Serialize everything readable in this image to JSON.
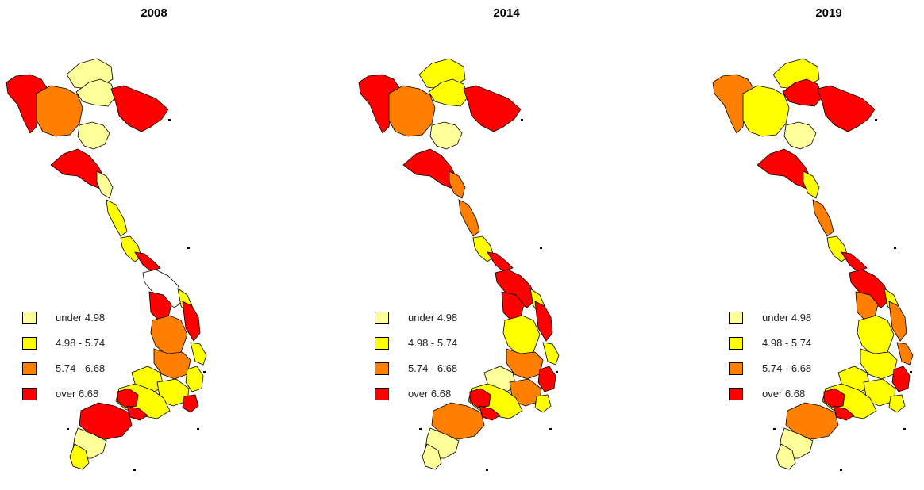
{
  "legend": {
    "classes": [
      {
        "label": "under 4.98",
        "color": "#ffff99"
      },
      {
        "label": "4.98 - 5.74",
        "color": "#ffff00"
      },
      {
        "label": "5.74 - 6.68",
        "color": "#ff8000"
      },
      {
        "label": "over 6.68",
        "color": "#ff0000"
      }
    ],
    "no_data_color": "#ffffff"
  },
  "panels": [
    {
      "year": "2008",
      "regions": {
        "northwest": 3,
        "north_center": 2,
        "north_east": 0,
        "red_delta": 3,
        "north_north": 0,
        "thanh_hoa": 0,
        "nghe_an": 3,
        "ha_tinh": 0,
        "quang_binh": 1,
        "quang_tri": 1,
        "hue": 3,
        "quang_nam": -1,
        "kon_tum": 3,
        "quang_ngai": 1,
        "gia_lai": 2,
        "binh_dinh": 3,
        "dak_lak": 2,
        "phu_yen": 1,
        "dak_nong": 1,
        "khanh_hoa": 1,
        "lam_dong": 1,
        "ninh_thuan": 3,
        "southeast": 1,
        "binh_duong": 3,
        "hcmc": 3,
        "mekong_north": 3,
        "mekong_south": 0,
        "ca_mau": 1
      }
    },
    {
      "year": "2014",
      "regions": {
        "northwest": 3,
        "north_center": 2,
        "north_east": 1,
        "red_delta": 3,
        "north_north": 1,
        "thanh_hoa": 0,
        "nghe_an": 3,
        "ha_tinh": 2,
        "quang_binh": 2,
        "quang_tri": 1,
        "hue": 3,
        "quang_nam": 3,
        "kon_tum": 3,
        "quang_ngai": 1,
        "gia_lai": 1,
        "binh_dinh": 3,
        "dak_lak": 2,
        "phu_yen": 1,
        "dak_nong": 0,
        "khanh_hoa": 3,
        "lam_dong": 2,
        "ninh_thuan": 1,
        "southeast": 1,
        "binh_duong": 3,
        "hcmc": 3,
        "mekong_north": 2,
        "mekong_south": 0,
        "ca_mau": 0
      }
    },
    {
      "year": "2019",
      "regions": {
        "northwest": 2,
        "north_center": 1,
        "north_east": 1,
        "red_delta": 3,
        "north_north": 3,
        "thanh_hoa": 0,
        "nghe_an": 3,
        "ha_tinh": 1,
        "quang_binh": 2,
        "quang_tri": 1,
        "hue": 3,
        "quang_nam": 3,
        "kon_tum": 2,
        "quang_ngai": 1,
        "gia_lai": 1,
        "binh_dinh": 2,
        "dak_lak": 1,
        "phu_yen": 2,
        "dak_nong": 1,
        "khanh_hoa": 3,
        "lam_dong": 1,
        "ninh_thuan": 1,
        "southeast": 1,
        "binh_duong": 3,
        "hcmc": 3,
        "mekong_north": 2,
        "mekong_south": 0,
        "ca_mau": 0
      }
    }
  ]
}
